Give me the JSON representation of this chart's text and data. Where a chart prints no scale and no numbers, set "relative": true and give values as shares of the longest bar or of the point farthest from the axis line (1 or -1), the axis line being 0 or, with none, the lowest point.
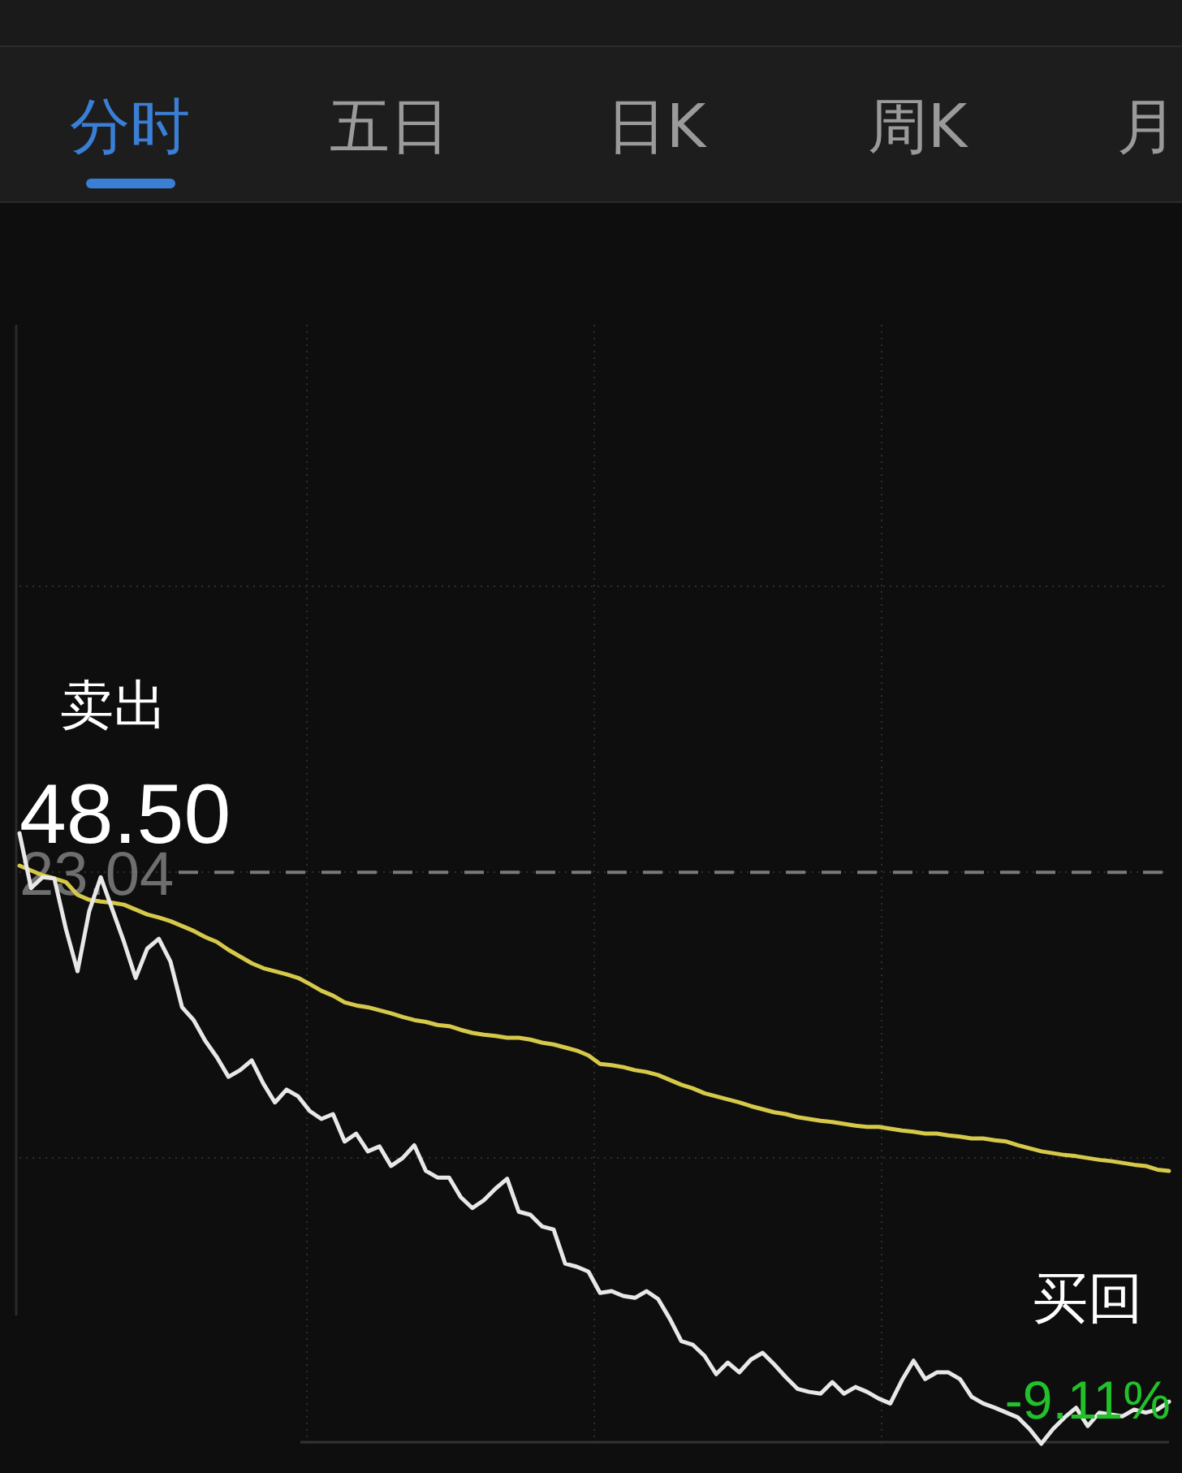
{
  "chart_data": {
    "type": "line",
    "relative": true,
    "categories": [
      null,
      null,
      null,
      null,
      null,
      null,
      null,
      null,
      null,
      null,
      null,
      null,
      null,
      null,
      null,
      null,
      null,
      null,
      null,
      null,
      null,
      null,
      null,
      null,
      null,
      null,
      null,
      null,
      null,
      null,
      null,
      null,
      null,
      null,
      null,
      null,
      null,
      null,
      null,
      null,
      null,
      null,
      null,
      null,
      null,
      null,
      null,
      null,
      null,
      null,
      null,
      null,
      null,
      null,
      null,
      null,
      null,
      null,
      null,
      null,
      null,
      null,
      null,
      null,
      null,
      null,
      null,
      null,
      null,
      null,
      null,
      null,
      null,
      null,
      null,
      null,
      null,
      null,
      null,
      null,
      null,
      null,
      null,
      null,
      null,
      null,
      null,
      null,
      null,
      null,
      null,
      null,
      null,
      null,
      null,
      null,
      null,
      null,
      null,
      null
    ],
    "series": [
      {
        "color": "#d6c94a",
        "values": [
          0.947,
          0.939,
          0.931,
          0.926,
          0.92,
          0.899,
          0.891,
          0.888,
          0.886,
          0.883,
          0.875,
          0.867,
          0.862,
          0.856,
          0.848,
          0.84,
          0.83,
          0.822,
          0.809,
          0.798,
          0.787,
          0.779,
          0.774,
          0.769,
          0.763,
          0.753,
          0.742,
          0.734,
          0.723,
          0.718,
          0.715,
          0.71,
          0.705,
          0.699,
          0.694,
          0.691,
          0.686,
          0.684,
          0.678,
          0.673,
          0.67,
          0.668,
          0.665,
          0.665,
          0.662,
          0.657,
          0.654,
          0.649,
          0.644,
          0.636,
          0.622,
          0.62,
          0.617,
          0.612,
          0.609,
          0.604,
          0.596,
          0.588,
          0.582,
          0.574,
          0.569,
          0.564,
          0.559,
          0.553,
          0.548,
          0.543,
          0.54,
          0.535,
          0.532,
          0.529,
          0.527,
          0.524,
          0.521,
          0.519,
          0.519,
          0.516,
          0.513,
          0.511,
          0.508,
          0.508,
          0.505,
          0.503,
          0.5,
          0.5,
          0.497,
          0.495,
          0.489,
          0.484,
          0.479,
          0.476,
          0.473,
          0.471,
          0.468,
          0.465,
          0.463,
          0.46,
          0.457,
          0.455,
          0.449,
          0.447
        ]
      },
      {
        "color": "#e8e8e8",
        "values": [
          1,
          0.91,
          0.928,
          0.926,
          0.843,
          0.774,
          0.872,
          0.928,
          0.875,
          0.822,
          0.763,
          0.811,
          0.827,
          0.79,
          0.715,
          0.694,
          0.66,
          0.633,
          0.601,
          0.612,
          0.628,
          0.59,
          0.559,
          0.58,
          0.569,
          0.545,
          0.532,
          0.54,
          0.495,
          0.508,
          0.479,
          0.487,
          0.455,
          0.468,
          0.489,
          0.447,
          0.436,
          0.436,
          0.404,
          0.386,
          0.399,
          0.418,
          0.434,
          0.38,
          0.375,
          0.356,
          0.351,
          0.295,
          0.29,
          0.282,
          0.247,
          0.25,
          0.242,
          0.239,
          0.25,
          0.237,
          0.205,
          0.168,
          0.162,
          0.144,
          0.114,
          0.133,
          0.117,
          0.138,
          0.149,
          0.13,
          0.109,
          0.09,
          0.085,
          0.082,
          0.101,
          0.082,
          0.093,
          0.085,
          0.074,
          0.066,
          0.104,
          0.136,
          0.106,
          0.117,
          0.117,
          0.106,
          0.077,
          0.066,
          0.059,
          0.051,
          0.043,
          0.024,
          0,
          0.024,
          0.043,
          0.059,
          0.029,
          0.051,
          0.048,
          0.045,
          0.056,
          0.051,
          0.056,
          0.069
        ]
      }
    ],
    "ref_lines": [
      {
        "axis": "y",
        "value": 0.936,
        "color": "#7a7a7a",
        "line_style": "dashed"
      }
    ],
    "grid": true,
    "annotations": [
      "分时",
      "五日",
      "日K",
      "周K",
      "月",
      "卖出",
      "48.50",
      "23.04",
      "买回",
      "-9.11%"
    ]
  }
}
